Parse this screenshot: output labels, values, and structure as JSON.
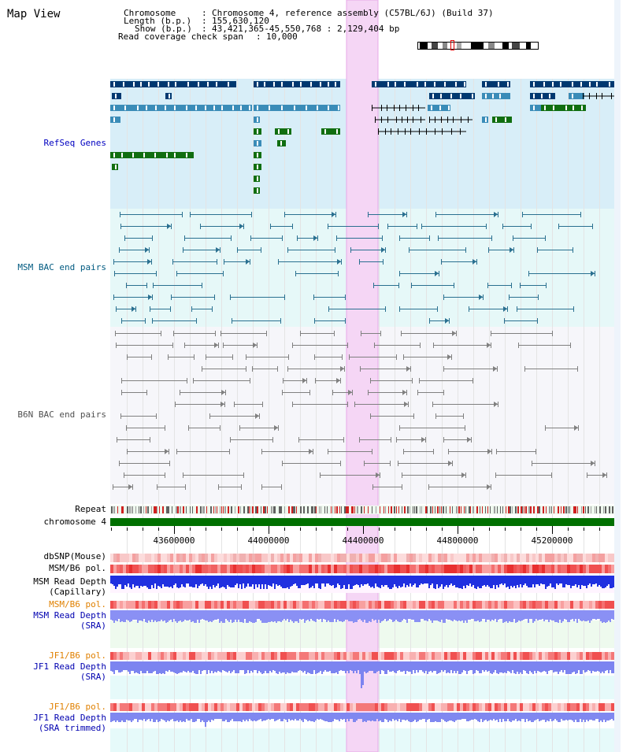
{
  "map_title": "Map View",
  "info": {
    "chromosome_label": "Chromosome",
    "chromosome_value": "Chromosome 4, reference assembly (C57BL/6J) (Build 37)",
    "length_label": "Length (b.p.)",
    "length_value": "155,630,120",
    "show_label": "Show (b.p.)",
    "show_value": "43,421,365-45,550,768 : 2,129,404 bp",
    "coverage_label": "Read coverage check span",
    "coverage_value": "10,000"
  },
  "tracks": {
    "refseq_genes": "RefSeq Genes",
    "msm_bac": "MSM BAC end pairs",
    "b6n_bac": "B6N BAC end pairs",
    "repeat": "Repeat",
    "chromosome": "chromosome 4",
    "dbsnp": "dbSNP(Mouse)",
    "msm_b6_pol_1": "MSM/B6 pol.",
    "msm_read_depth_cap_1": "MSM Read Depth",
    "msm_read_depth_cap_2": "(Capillary)",
    "msm_b6_pol_2": "MSM/B6 pol.",
    "msm_read_depth_sra_1": "MSM Read Depth",
    "msm_read_depth_sra_2": "(SRA)",
    "jf1_b6_pol_1": "JF1/B6 pol.",
    "jf1_read_depth_sra_1": "JF1 Read Depth",
    "jf1_read_depth_sra_2": "(SRA)",
    "jf1_b6_pol_2": "JF1/B6 pol.",
    "jf1_read_depth_trim_1": "JF1 Read Depth",
    "jf1_read_depth_trim_2": "(SRA trimmed)"
  },
  "axis_ticks": [
    "43600000",
    "44000000",
    "44400000",
    "44800000",
    "45200000"
  ],
  "colors": {
    "refseq_bg": "#d8eef8",
    "msm_bac_bg": "#e6f8f8",
    "b6n_bac_bg": "#f6f6fa",
    "highlight": "#f5d6f5",
    "refseq_label": "#0000c0",
    "msm_label": "#005a80",
    "b6n_label": "#505050",
    "pol_label": "#e08000",
    "depth_label": "#0000b0",
    "chromosome_bar": "#007000",
    "gene_dark_blue": "#003870",
    "gene_mid_blue": "#3a8cb8",
    "gene_green": "#106e10",
    "bac_teal": "#2a7090",
    "bac_gray": "#808080"
  }
}
